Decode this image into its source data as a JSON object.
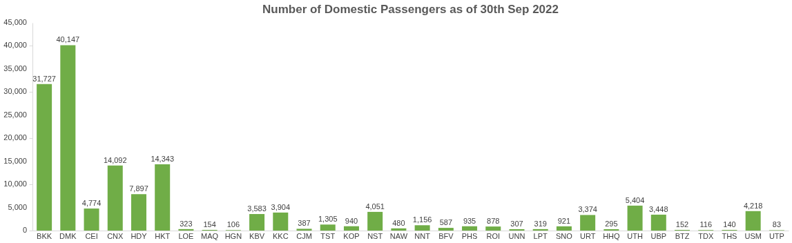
{
  "chart_data": {
    "type": "bar",
    "title": "Number of Domestic Passengers as of 30th Sep 2022",
    "categories": [
      "BKK",
      "DMK",
      "CEI",
      "CNX",
      "HDY",
      "HKT",
      "LOE",
      "MAQ",
      "HGN",
      "KBV",
      "KKC",
      "CJM",
      "TST",
      "KOP",
      "NST",
      "NAW",
      "NNT",
      "BFV",
      "PHS",
      "ROI",
      "UNN",
      "LPT",
      "SNO",
      "URT",
      "HHQ",
      "UTH",
      "UBP",
      "BTZ",
      "TDX",
      "THS",
      "USM",
      "UTP"
    ],
    "values": [
      31727,
      40147,
      4774,
      14092,
      7897,
      14343,
      323,
      154,
      106,
      3583,
      3904,
      387,
      1305,
      940,
      4051,
      480,
      1156,
      587,
      935,
      878,
      307,
      319,
      921,
      3374,
      295,
      5404,
      3448,
      152,
      116,
      140,
      4218,
      83
    ],
    "value_labels": [
      "31,727",
      "40,147",
      "4,774",
      "14,092",
      "7,897",
      "14,343",
      "323",
      "154",
      "106",
      "3,583",
      "3,904",
      "387",
      "1,305",
      "940",
      "4,051",
      "480",
      "1,156",
      "587",
      "935",
      "878",
      "307",
      "319",
      "921",
      "3,374",
      "295",
      "5,404",
      "3,448",
      "152",
      "116",
      "140",
      "4,218",
      "83"
    ],
    "color": "#70ad47",
    "ylim": [
      0,
      45000
    ],
    "yticks": [
      0,
      {
        "value": 5000,
        "label": "5,000"
      },
      {
        "value": 10000,
        "label": "10,000"
      },
      {
        "value": 15000,
        "label": "15,000"
      },
      {
        "value": 20000,
        "label": "20,000"
      },
      {
        "value": 25000,
        "label": "25,000"
      },
      {
        "value": 30000,
        "label": "30,000"
      },
      {
        "value": 35000,
        "label": "35,000"
      },
      {
        "value": 40000,
        "label": "40,000"
      },
      {
        "value": 45000,
        "label": "45,000"
      }
    ],
    "grid": false
  }
}
